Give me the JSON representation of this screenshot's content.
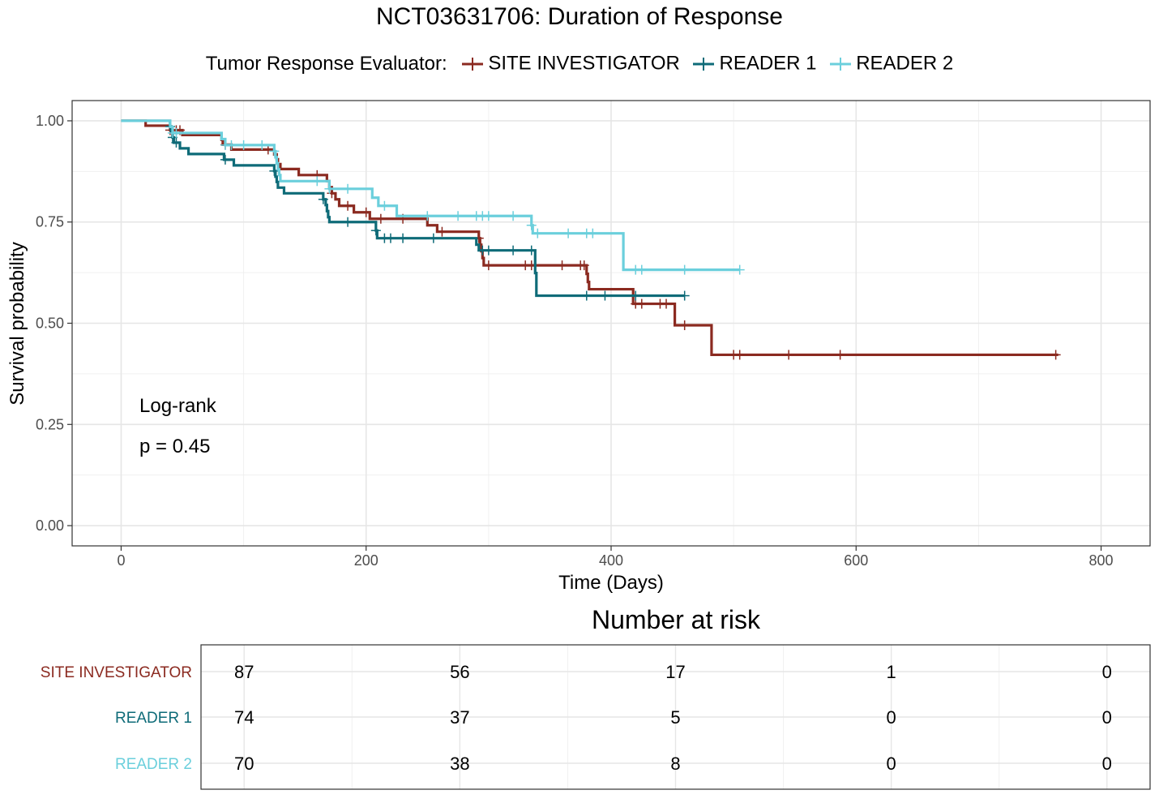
{
  "title": "NCT03631706: Duration of Response",
  "legend": {
    "title": "Tumor Response Evaluator:",
    "items": [
      {
        "label": "SITE INVESTIGATOR",
        "color": "#8B2A20"
      },
      {
        "label": "READER 1",
        "color": "#0E6B78"
      },
      {
        "label": "READER 2",
        "color": "#6BCFDC"
      }
    ]
  },
  "annotation": {
    "line1": "Log-rank",
    "line2": "p = 0.45"
  },
  "risk_table": {
    "title": "Number at risk",
    "times": [
      0,
      200,
      400,
      600,
      800
    ],
    "rows": [
      {
        "label": "SITE INVESTIGATOR",
        "color": "#8B2A20",
        "values": [
          "87",
          "56",
          "17",
          "1",
          "0"
        ]
      },
      {
        "label": "READER 1",
        "color": "#0E6B78",
        "values": [
          "74",
          "37",
          "5",
          "0",
          "0"
        ]
      },
      {
        "label": "READER 2",
        "color": "#6BCFDC",
        "values": [
          "70",
          "38",
          "8",
          "0",
          "0"
        ]
      }
    ]
  },
  "chart_data": {
    "type": "line",
    "subtype": "kaplan-meier step",
    "title": "NCT03631706: Duration of Response",
    "xlabel": "Time (Days)",
    "ylabel": "Survival probability",
    "xlim": [
      -40,
      840
    ],
    "ylim": [
      -0.05,
      1.05
    ],
    "x_ticks": [
      0,
      200,
      400,
      600,
      800
    ],
    "y_ticks": [
      0.0,
      0.25,
      0.5,
      0.75,
      1.0
    ],
    "y_tick_labels": [
      "0.00",
      "0.25",
      "0.50",
      "0.75",
      "1.00"
    ],
    "grid": true,
    "legend_position": "top",
    "series": [
      {
        "name": "SITE INVESTIGATOR",
        "color": "#8B2A20",
        "steps": [
          [
            0,
            1.0
          ],
          [
            20,
            0.988
          ],
          [
            40,
            0.977
          ],
          [
            50,
            0.965
          ],
          [
            82,
            0.953
          ],
          [
            83,
            0.941
          ],
          [
            90,
            0.929
          ],
          [
            125,
            0.917
          ],
          [
            127,
            0.905
          ],
          [
            128,
            0.893
          ],
          [
            130,
            0.881
          ],
          [
            145,
            0.866
          ],
          [
            168,
            0.851
          ],
          [
            170,
            0.836
          ],
          [
            172,
            0.821
          ],
          [
            175,
            0.806
          ],
          [
            178,
            0.79
          ],
          [
            190,
            0.774
          ],
          [
            203,
            0.758
          ],
          [
            245,
            0.758
          ],
          [
            250,
            0.742
          ],
          [
            258,
            0.726
          ],
          [
            292,
            0.71
          ],
          [
            293,
            0.694
          ],
          [
            294,
            0.678
          ],
          [
            295,
            0.661
          ],
          [
            296,
            0.643
          ],
          [
            380,
            0.622
          ],
          [
            381,
            0.602
          ],
          [
            382,
            0.584
          ],
          [
            418,
            0.548
          ],
          [
            452,
            0.495
          ],
          [
            482,
            0.422
          ],
          [
            765,
            0.422
          ]
        ],
        "censor_times": [
          40,
          45,
          48,
          85,
          120,
          160,
          172,
          185,
          200,
          212,
          230,
          262,
          292,
          300,
          330,
          335,
          360,
          375,
          378,
          420,
          425,
          440,
          445,
          460,
          500,
          505,
          545,
          587,
          763
        ]
      },
      {
        "name": "READER 1",
        "color": "#0E6B78",
        "steps": [
          [
            0,
            1.0
          ],
          [
            40,
            0.986
          ],
          [
            41,
            0.973
          ],
          [
            42,
            0.959
          ],
          [
            43,
            0.946
          ],
          [
            48,
            0.932
          ],
          [
            55,
            0.918
          ],
          [
            84,
            0.904
          ],
          [
            92,
            0.89
          ],
          [
            125,
            0.876
          ],
          [
            126,
            0.862
          ],
          [
            127,
            0.849
          ],
          [
            128,
            0.835
          ],
          [
            133,
            0.821
          ],
          [
            165,
            0.806
          ],
          [
            167,
            0.792
          ],
          [
            168,
            0.777
          ],
          [
            169,
            0.762
          ],
          [
            170,
            0.75
          ],
          [
            208,
            0.729
          ],
          [
            209,
            0.71
          ],
          [
            290,
            0.694
          ],
          [
            292,
            0.68
          ],
          [
            338,
            0.624
          ],
          [
            339,
            0.568
          ],
          [
            460,
            0.568
          ]
        ],
        "censor_times": [
          40,
          42,
          45,
          85,
          125,
          165,
          185,
          208,
          215,
          220,
          230,
          255,
          295,
          300,
          320,
          335,
          380,
          395,
          420,
          460
        ]
      },
      {
        "name": "READER 2",
        "color": "#6BCFDC",
        "steps": [
          [
            0,
            1.0
          ],
          [
            40,
            0.985
          ],
          [
            42,
            0.97
          ],
          [
            82,
            0.955
          ],
          [
            85,
            0.94
          ],
          [
            125,
            0.925
          ],
          [
            126,
            0.91
          ],
          [
            127,
            0.895
          ],
          [
            128,
            0.88
          ],
          [
            129,
            0.866
          ],
          [
            130,
            0.851
          ],
          [
            170,
            0.832
          ],
          [
            205,
            0.81
          ],
          [
            210,
            0.79
          ],
          [
            225,
            0.765
          ],
          [
            335,
            0.742
          ],
          [
            336,
            0.722
          ],
          [
            410,
            0.632
          ],
          [
            505,
            0.632
          ]
        ],
        "censor_times": [
          42,
          45,
          85,
          90,
          100,
          115,
          125,
          160,
          170,
          185,
          215,
          250,
          275,
          290,
          295,
          300,
          320,
          335,
          340,
          365,
          380,
          385,
          420,
          425,
          460,
          505
        ]
      }
    ]
  }
}
